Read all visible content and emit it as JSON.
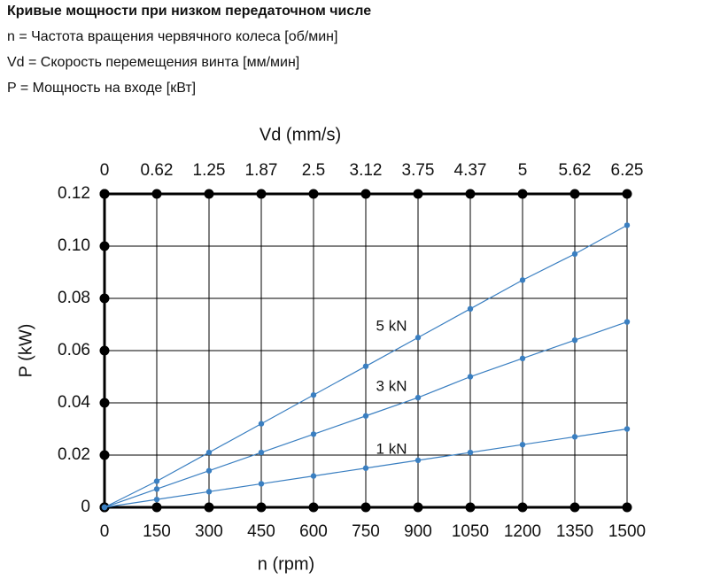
{
  "header": {
    "title": "Кривые мощности при низком передаточном числе",
    "legend_lines": [
      "n = Частота вращения червячного колеса [об/мин]",
      "Vd = Скорость перемещения винта [мм/мин]",
      "P = Мощность на входе [кВт]"
    ]
  },
  "chart_data": {
    "type": "line",
    "xlabel": "n (rpm)",
    "ylabel": "P (kW)",
    "x2label": "Vd (mm/s)",
    "xlim": [
      0,
      1500
    ],
    "ylim": [
      0,
      0.12
    ],
    "x": [
      0,
      150,
      300,
      450,
      600,
      750,
      900,
      1050,
      1200,
      1350,
      1500
    ],
    "x_ticks": [
      "0",
      "150",
      "300",
      "450",
      "600",
      "750",
      "900",
      "1050",
      "1200",
      "1350",
      "1500"
    ],
    "x2_ticks": [
      "0",
      "0.62",
      "1.25",
      "1.87",
      "2.5",
      "3.12",
      "3.75",
      "4.37",
      "5",
      "5.62",
      "6.25"
    ],
    "y_ticks": [
      0,
      0.02,
      0.04,
      0.06,
      0.08,
      0.1,
      0.12
    ],
    "y_tick_labels": [
      "0",
      "0.02",
      "0.04",
      "0.06",
      "0.08",
      "0.10",
      "0.12"
    ],
    "grid": true,
    "series": [
      {
        "name": "5 kN",
        "label_at_x": 900,
        "values": [
          0,
          0.01,
          0.021,
          0.032,
          0.043,
          0.054,
          0.065,
          0.076,
          0.087,
          0.097,
          0.108
        ]
      },
      {
        "name": "3 kN",
        "label_at_x": 900,
        "values": [
          0,
          0.007,
          0.014,
          0.021,
          0.028,
          0.035,
          0.042,
          0.05,
          0.057,
          0.064,
          0.071
        ]
      },
      {
        "name": "1 kN",
        "label_at_x": 900,
        "values": [
          0,
          0.003,
          0.006,
          0.009,
          0.012,
          0.015,
          0.018,
          0.021,
          0.024,
          0.027,
          0.03
        ]
      }
    ],
    "colors": {
      "series": "#3a7fc1",
      "grid": "#000000",
      "nodes": "#000000"
    }
  }
}
